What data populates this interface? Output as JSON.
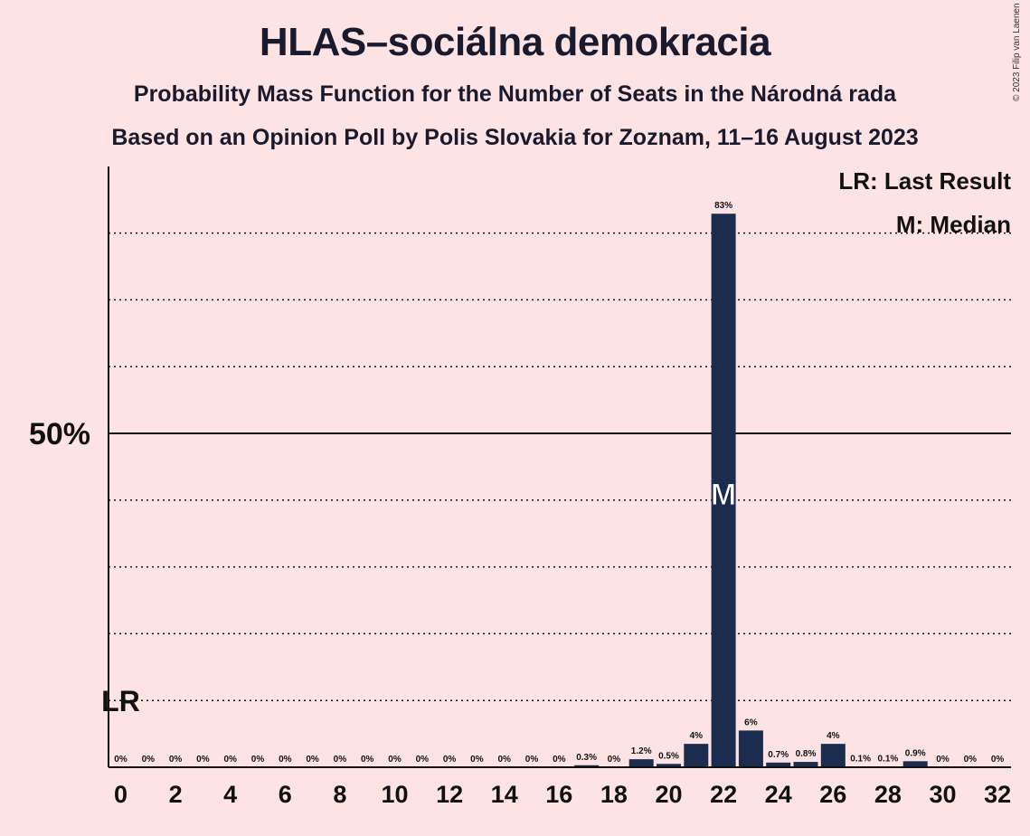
{
  "title": "HLAS–sociálna demokracia",
  "subtitle1": "Probability Mass Function for the Number of Seats in the Národná rada",
  "subtitle2": "Based on an Opinion Poll by Polis Slovakia for Zoznam, 11–16 August 2023",
  "copyright": "© 2023 Filip van Laenen",
  "legend": {
    "last_result": "LR: Last Result",
    "median": "M: Median"
  },
  "colors": {
    "background": "#fde3e3",
    "bar": "#1b2c4f",
    "text": "#111111"
  },
  "chart_data": {
    "type": "bar",
    "x": [
      0,
      1,
      2,
      3,
      4,
      5,
      6,
      7,
      8,
      9,
      10,
      11,
      12,
      13,
      14,
      15,
      16,
      17,
      18,
      19,
      20,
      21,
      22,
      23,
      24,
      25,
      26,
      27,
      28,
      29,
      30,
      31,
      32
    ],
    "values": [
      0,
      0,
      0,
      0,
      0,
      0,
      0,
      0,
      0,
      0,
      0,
      0,
      0,
      0,
      0,
      0,
      0,
      0.3,
      0,
      1.2,
      0.5,
      3.5,
      82.9,
      5.5,
      0.7,
      0.8,
      3.5,
      0.1,
      0.1,
      0.9,
      0,
      0,
      0
    ],
    "labels": [
      "0%",
      "0%",
      "0%",
      "0%",
      "0%",
      "0%",
      "0%",
      "0%",
      "0%",
      "0%",
      "0%",
      "0%",
      "0%",
      "0%",
      "0%",
      "0%",
      "0%",
      "0.3%",
      "0%",
      "1.2%",
      "0.5%",
      "4%",
      "83%",
      "6%",
      "0.7%",
      "0.8%",
      "4%",
      "0.1%",
      "0.1%",
      "0.9%",
      "0%",
      "0%",
      "0%"
    ],
    "x_tick_labels": [
      "0",
      "2",
      "4",
      "6",
      "8",
      "10",
      "12",
      "14",
      "16",
      "18",
      "20",
      "22",
      "24",
      "26",
      "28",
      "30",
      "32"
    ],
    "x_tick_values": [
      0,
      2,
      4,
      6,
      8,
      10,
      12,
      14,
      16,
      18,
      20,
      22,
      24,
      26,
      28,
      30,
      32
    ],
    "y_tick_label": "50%",
    "y_tick_value": 50,
    "ylim": [
      0,
      90
    ],
    "xlim": [
      -0.5,
      32.5
    ],
    "gridlines": [
      10,
      20,
      30,
      40,
      60,
      70,
      80
    ],
    "last_result": {
      "x": 0,
      "marker": "LR"
    },
    "median": {
      "x": 22,
      "marker": "M"
    },
    "grid": true,
    "legend_position": "top-right"
  }
}
